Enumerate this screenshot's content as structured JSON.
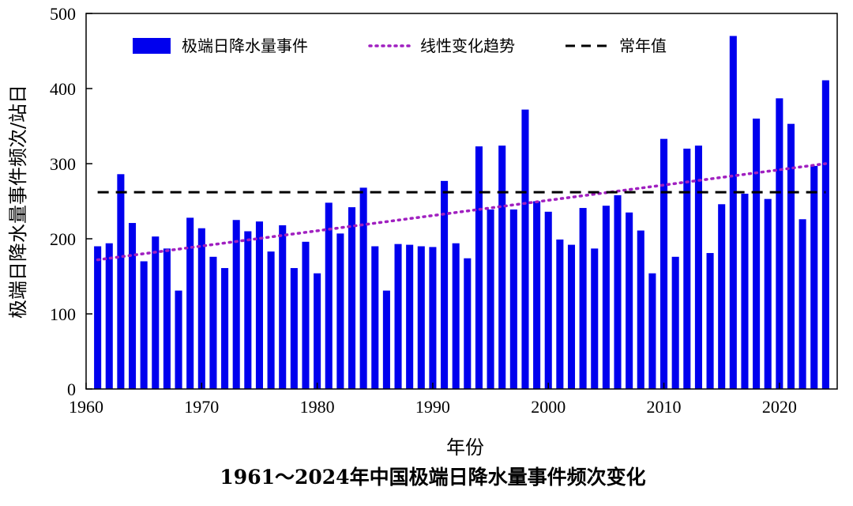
{
  "chart_data": {
    "type": "bar",
    "title": "1961～2024年中国极端日降水量事件频次变化",
    "xlabel": "年份",
    "ylabel": "极端日降水量事件频次/站日",
    "xlim": [
      1960,
      2025
    ],
    "ylim": [
      0,
      500
    ],
    "xticks": [
      "1960",
      "1970",
      "1980",
      "1990",
      "2000",
      "2010",
      "2020"
    ],
    "yticks": [
      "0",
      "100",
      "200",
      "300",
      "400",
      "500"
    ],
    "legend_position": "top",
    "series": [
      {
        "name": "极端日降水量事件",
        "type": "bar",
        "color": "#0000ee",
        "x": [
          1961,
          1962,
          1963,
          1964,
          1965,
          1966,
          1967,
          1968,
          1969,
          1970,
          1971,
          1972,
          1973,
          1974,
          1975,
          1976,
          1977,
          1978,
          1979,
          1980,
          1981,
          1982,
          1983,
          1984,
          1985,
          1986,
          1987,
          1988,
          1989,
          1990,
          1991,
          1992,
          1993,
          1994,
          1995,
          1996,
          1997,
          1998,
          1999,
          2000,
          2001,
          2002,
          2003,
          2004,
          2005,
          2006,
          2007,
          2008,
          2009,
          2010,
          2011,
          2012,
          2013,
          2014,
          2015,
          2016,
          2017,
          2018,
          2019,
          2020,
          2021,
          2022,
          2023,
          2024
        ],
        "values": [
          190,
          194,
          286,
          221,
          170,
          203,
          187,
          131,
          228,
          214,
          176,
          161,
          225,
          210,
          223,
          183,
          218,
          161,
          196,
          154,
          248,
          207,
          242,
          268,
          190,
          131,
          193,
          192,
          190,
          189,
          277,
          194,
          174,
          323,
          239,
          324,
          239,
          372,
          250,
          236,
          199,
          192,
          241,
          187,
          244,
          258,
          235,
          211,
          154,
          333,
          176,
          320,
          324,
          181,
          246,
          470,
          260,
          360,
          253,
          387,
          353,
          226,
          297,
          411
        ]
      },
      {
        "name": "线性变化趋势",
        "type": "line",
        "style": "dotted",
        "color": "#a020c0",
        "x": [
          1961,
          2024
        ],
        "values": [
          172,
          300
        ]
      },
      {
        "name": "常年值",
        "type": "line",
        "style": "dashed",
        "color": "#000000",
        "x": [
          1961,
          2024
        ],
        "values": [
          262,
          262
        ]
      }
    ]
  }
}
